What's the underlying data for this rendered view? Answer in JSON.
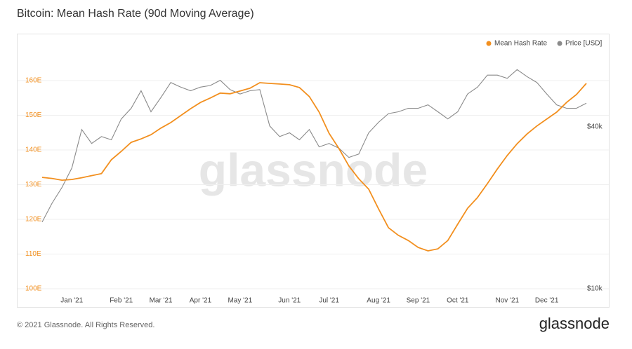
{
  "chart_data": {
    "type": "line",
    "title": "Bitcoin: Mean Hash Rate (90d Moving Average)",
    "watermark": "glassnode",
    "footer": "© 2021 Glassnode. All Rights Reserved.",
    "brand": "glassnode",
    "categories": [
      null,
      null,
      null,
      "Jan '21",
      null,
      null,
      null,
      null,
      "Feb '21",
      null,
      null,
      null,
      "Mar '21",
      null,
      null,
      null,
      "Apr '21",
      null,
      null,
      null,
      "May '21",
      null,
      null,
      null,
      null,
      "Jun '21",
      null,
      null,
      null,
      "Jul '21",
      null,
      null,
      null,
      null,
      "Aug '21",
      null,
      null,
      null,
      "Sep '21",
      null,
      null,
      null,
      "Oct '21",
      null,
      null,
      null,
      null,
      "Nov '21",
      null,
      null,
      null,
      "Dec '21",
      null,
      null,
      null,
      null
    ],
    "series": [
      {
        "name": "Mean Hash Rate",
        "color": "#f28f1e",
        "axis": "y",
        "values": [
          132.1,
          131.8,
          131.3,
          131.5,
          132.0,
          132.6,
          133.2,
          137.2,
          139.6,
          142.2,
          143.2,
          144.4,
          146.3,
          147.9,
          149.9,
          151.9,
          153.7,
          155.0,
          156.4,
          156.2,
          157.0,
          157.8,
          159.4,
          159.2,
          159.0,
          158.8,
          158.0,
          155.4,
          150.9,
          144.8,
          140.4,
          135.4,
          131.7,
          128.7,
          123.0,
          117.6,
          115.4,
          113.9,
          111.9,
          110.9,
          111.5,
          113.9,
          118.6,
          123.2,
          126.3,
          130.3,
          134.5,
          138.4,
          141.8,
          144.6,
          146.9,
          148.9,
          150.9,
          153.7,
          156.0,
          159.2
        ]
      },
      {
        "name": "Price [USD]",
        "color": "#8a8a8a",
        "axis": "y2",
        "values": [
          17700,
          20800,
          23800,
          28100,
          39100,
          34700,
          36800,
          35800,
          42800,
          46900,
          54500,
          45500,
          51400,
          58500,
          56200,
          54500,
          56200,
          57000,
          59600,
          55000,
          53000,
          54500,
          55000,
          40300,
          36800,
          38000,
          35800,
          39100,
          33700,
          34700,
          33300,
          30800,
          31700,
          38000,
          41600,
          44800,
          45500,
          46900,
          46900,
          48300,
          45500,
          42800,
          45500,
          53000,
          56200,
          62300,
          62300,
          60600,
          65300,
          61500,
          58500,
          53000,
          48300,
          46900,
          46900,
          49000
        ]
      }
    ],
    "ylim": [
      100,
      170
    ],
    "yticks": [
      {
        "value": 100,
        "label": "100E"
      },
      {
        "value": 110,
        "label": "110E"
      },
      {
        "value": 120,
        "label": "120E"
      },
      {
        "value": 130,
        "label": "130E"
      },
      {
        "value": 140,
        "label": "140E"
      },
      {
        "value": 150,
        "label": "150E"
      },
      {
        "value": 160,
        "label": "160E"
      }
    ],
    "y2lim": [
      10000,
      80000
    ],
    "y2scale": "log",
    "y2ticks": [
      {
        "value": 10000,
        "label": "$10k"
      },
      {
        "value": 40000,
        "label": "$40k"
      }
    ],
    "grid": true,
    "legend": "top-right"
  }
}
